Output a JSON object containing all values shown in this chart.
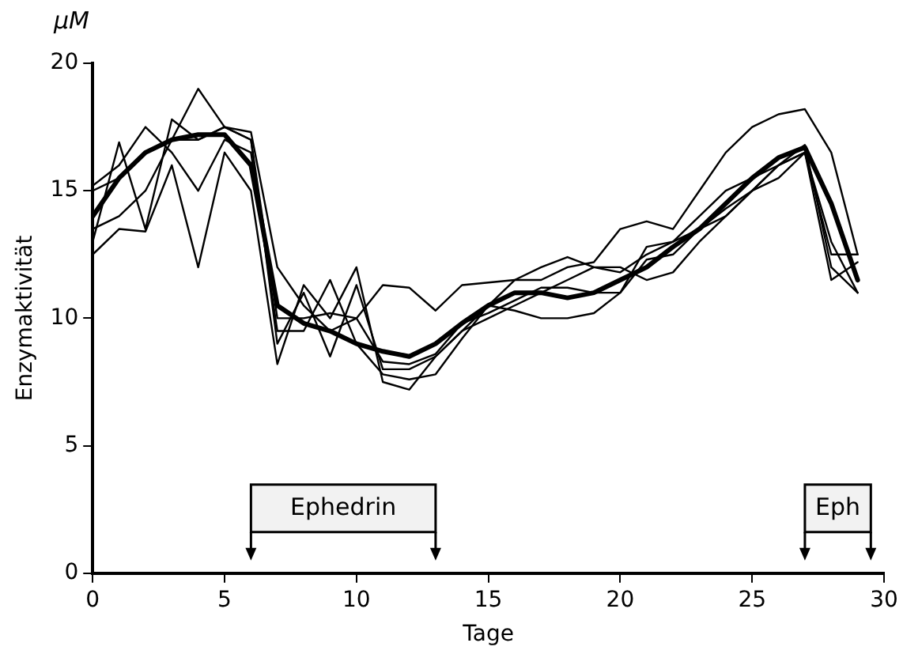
{
  "chart_data": {
    "type": "line",
    "xlabel": "Tage",
    "ylabel": "Enzymaktivität",
    "annotations": [
      "µM"
    ],
    "x": [
      0,
      1,
      2,
      3,
      4,
      5,
      6,
      7,
      8,
      9,
      10,
      11,
      12,
      13,
      14,
      15,
      16,
      17,
      18,
      19,
      20,
      21,
      22,
      23,
      24,
      25,
      26,
      27,
      28,
      29
    ],
    "series": [
      {
        "color": "#000000",
        "values": [
          14,
          15.5,
          16.5,
          17,
          17.2,
          17.2,
          16,
          10.5,
          9.8,
          9.5,
          9,
          8.7,
          8.5,
          9,
          9.8,
          10.5,
          11,
          11,
          10.8,
          11,
          11.5,
          12,
          12.8,
          13.5,
          14.5,
          15.5,
          16.3,
          16.7,
          14.5,
          11.5
        ]
      },
      {
        "color": "#000000",
        "values": [
          15,
          15.5,
          16.5,
          17,
          19,
          17.5,
          17.3,
          12,
          10.5,
          9.5,
          10,
          11.3,
          11.2,
          10.3,
          11.3,
          11.4,
          11.5,
          11.5,
          12,
          12.2,
          13.5,
          13.8,
          13.5,
          15,
          16.5,
          17.5,
          18,
          18.2,
          16.5,
          12.5
        ]
      },
      {
        "color": "#000000",
        "values": [
          13,
          16.9,
          13.5,
          17.8,
          17,
          17.5,
          17,
          9,
          11,
          8.5,
          11.3,
          8,
          8,
          8.5,
          9.5,
          10.5,
          10.3,
          10,
          10,
          10.2,
          11,
          12.3,
          12.5,
          13.5,
          14,
          15,
          16,
          16.8,
          12,
          11
        ]
      },
      {
        "color": "#000000",
        "values": [
          12.5,
          13.5,
          13.4,
          16,
          12,
          16.5,
          15,
          8.2,
          11.3,
          10,
          12,
          7.5,
          7.2,
          8.5,
          9.5,
          10,
          10.5,
          11,
          11.5,
          12,
          12,
          11.5,
          11.8,
          13,
          14,
          15,
          16,
          16.5,
          12.5,
          12.5
        ]
      },
      {
        "color": "#000000",
        "values": [
          15.2,
          16,
          17.5,
          16.5,
          15,
          17,
          16.5,
          9.5,
          9.5,
          11.5,
          9,
          7.8,
          7.6,
          7.8,
          9.2,
          10.5,
          11.5,
          12,
          12.4,
          12,
          11.8,
          12.5,
          13,
          13.5,
          14.3,
          15,
          15.5,
          16.5,
          11.5,
          12.2
        ]
      },
      {
        "color": "#000000",
        "values": [
          13.5,
          14,
          15,
          17,
          17,
          17.5,
          17,
          10,
          10,
          10.2,
          10,
          8.3,
          8.2,
          8.6,
          9.8,
          10.2,
          10.7,
          11.2,
          11.2,
          11,
          11,
          12.8,
          13,
          14,
          15,
          15.5,
          16,
          16.5,
          13,
          11
        ]
      }
    ],
    "xlim": [
      0,
      30
    ],
    "xticks": [
      0,
      5,
      10,
      15,
      20,
      25,
      30
    ],
    "ylim": [
      0,
      20
    ],
    "yticks": [
      0,
      5,
      10,
      15,
      20
    ],
    "grid": false,
    "legend": false,
    "marker": "none",
    "line_style": "solid",
    "bands": [
      {
        "axis": "x",
        "from": 6,
        "to": 13,
        "label": "Ephedrin"
      },
      {
        "axis": "x",
        "from": 27,
        "to": 29.5,
        "label": "Eph"
      }
    ]
  }
}
